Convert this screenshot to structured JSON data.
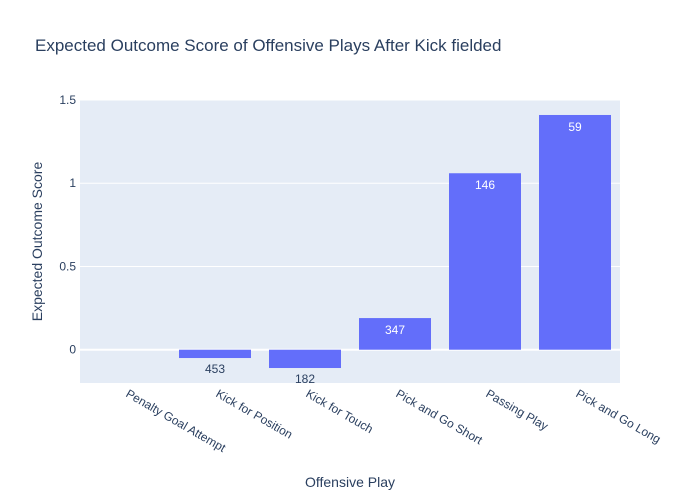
{
  "chart_data": {
    "type": "bar",
    "title": "Expected Outcome Score of Offensive Plays After Kick fielded",
    "xlabel": "Offensive Play",
    "ylabel": "Expected Outcome Score",
    "categories": [
      "Penalty Goal Attempt",
      "Kick for Position",
      "Kick for Touch",
      "Pick and Go Short",
      "Passing Play",
      "Pick and Go Long"
    ],
    "values": [
      0,
      -0.05,
      -0.11,
      0.19,
      1.06,
      1.41
    ],
    "bar_labels": [
      "",
      "453",
      "182",
      "347",
      "146",
      "59"
    ],
    "ylim": [
      -0.2,
      1.5
    ],
    "yticks": [
      0,
      0.5,
      1,
      1.5
    ],
    "ytick_labels": [
      "0",
      "0.5",
      "1",
      "1.5"
    ],
    "grid": true,
    "colors": {
      "bar": "#636efa",
      "plot_bg": "#e5ecf6",
      "text": "#2a3f5f",
      "grid": "#ffffff"
    }
  }
}
